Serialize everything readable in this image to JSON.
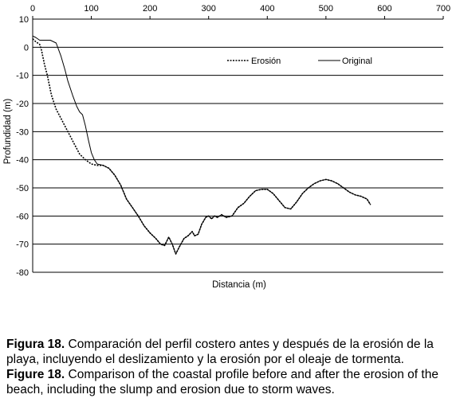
{
  "chart_data": {
    "type": "line",
    "xlabel": "Distancia (m)",
    "ylabel": "Profundidad (m)",
    "xlim": [
      0,
      700
    ],
    "ylim": [
      -80,
      10
    ],
    "xticks": [
      0,
      100,
      200,
      300,
      400,
      500,
      600,
      700
    ],
    "yticks": [
      10,
      0,
      -10,
      -20,
      -30,
      -40,
      -50,
      -60,
      -70,
      -80
    ],
    "x_axis_position": "top",
    "grid": "horizontal",
    "legend_position": "top-right",
    "series": [
      {
        "name": "Erosión",
        "style": "dotted",
        "points": [
          [
            0,
            3
          ],
          [
            5,
            2
          ],
          [
            12,
            1
          ],
          [
            15,
            -1
          ],
          [
            20,
            -6
          ],
          [
            25,
            -10
          ],
          [
            32,
            -17
          ],
          [
            40,
            -22
          ],
          [
            50,
            -26
          ],
          [
            60,
            -30
          ],
          [
            70,
            -34
          ],
          [
            80,
            -38
          ],
          [
            90,
            -40
          ],
          [
            100,
            -41.5
          ],
          [
            110,
            -42
          ],
          [
            120,
            -42
          ],
          [
            130,
            -43
          ],
          [
            140,
            -45.5
          ],
          [
            150,
            -49
          ],
          [
            160,
            -54
          ],
          [
            170,
            -57
          ],
          [
            180,
            -60
          ],
          [
            190,
            -63.5
          ],
          [
            200,
            -66
          ],
          [
            210,
            -68
          ],
          [
            218,
            -70
          ],
          [
            225,
            -70.5
          ],
          [
            232,
            -67.5
          ],
          [
            238,
            -70
          ],
          [
            244,
            -73.5
          ],
          [
            250,
            -71
          ],
          [
            258,
            -68
          ],
          [
            265,
            -67
          ],
          [
            272,
            -65.5
          ],
          [
            276,
            -67
          ],
          [
            282,
            -66.5
          ],
          [
            288,
            -63
          ],
          [
            295,
            -60.5
          ],
          [
            300,
            -60
          ],
          [
            305,
            -61
          ],
          [
            310,
            -60
          ],
          [
            315,
            -60.5
          ],
          [
            322,
            -59.5
          ],
          [
            330,
            -60.5
          ],
          [
            340,
            -60
          ],
          [
            350,
            -57
          ],
          [
            360,
            -55.5
          ],
          [
            370,
            -53
          ],
          [
            380,
            -51
          ],
          [
            390,
            -50.5
          ],
          [
            400,
            -50.5
          ],
          [
            410,
            -52
          ],
          [
            420,
            -54.5
          ],
          [
            430,
            -57
          ],
          [
            440,
            -57.5
          ],
          [
            450,
            -55
          ],
          [
            460,
            -52
          ],
          [
            470,
            -50
          ],
          [
            480,
            -48.5
          ],
          [
            490,
            -47.5
          ],
          [
            500,
            -47
          ],
          [
            510,
            -47.5
          ],
          [
            520,
            -48.5
          ],
          [
            530,
            -50
          ],
          [
            540,
            -51.5
          ],
          [
            550,
            -52.5
          ],
          [
            560,
            -53
          ],
          [
            570,
            -54
          ],
          [
            576,
            -56
          ]
        ]
      },
      {
        "name": "Original",
        "style": "solid",
        "points": [
          [
            0,
            4
          ],
          [
            5,
            3.5
          ],
          [
            12,
            2.5
          ],
          [
            20,
            2.5
          ],
          [
            30,
            2.5
          ],
          [
            40,
            1.5
          ],
          [
            48,
            -3
          ],
          [
            55,
            -8
          ],
          [
            60,
            -12
          ],
          [
            68,
            -17
          ],
          [
            75,
            -21
          ],
          [
            80,
            -23
          ],
          [
            85,
            -24
          ],
          [
            90,
            -28
          ],
          [
            95,
            -33
          ],
          [
            100,
            -37.5
          ],
          [
            105,
            -40
          ],
          [
            110,
            -41.5
          ],
          [
            120,
            -42
          ],
          [
            130,
            -43
          ],
          [
            140,
            -45.5
          ],
          [
            150,
            -49
          ],
          [
            160,
            -54
          ],
          [
            170,
            -57
          ],
          [
            180,
            -60
          ],
          [
            190,
            -63.5
          ],
          [
            200,
            -66
          ],
          [
            210,
            -68
          ],
          [
            218,
            -70
          ],
          [
            225,
            -70.5
          ],
          [
            232,
            -67.5
          ],
          [
            238,
            -70
          ],
          [
            244,
            -73.5
          ],
          [
            250,
            -71
          ],
          [
            258,
            -68
          ],
          [
            265,
            -67
          ],
          [
            272,
            -65.5
          ],
          [
            276,
            -67
          ],
          [
            282,
            -66.5
          ],
          [
            288,
            -63
          ],
          [
            295,
            -60.5
          ],
          [
            300,
            -60
          ],
          [
            305,
            -61
          ],
          [
            310,
            -60
          ],
          [
            315,
            -60.5
          ],
          [
            322,
            -59.5
          ],
          [
            330,
            -60.5
          ],
          [
            340,
            -60
          ],
          [
            350,
            -57
          ],
          [
            360,
            -55.5
          ],
          [
            370,
            -53
          ],
          [
            380,
            -51
          ],
          [
            390,
            -50.5
          ],
          [
            400,
            -50.5
          ],
          [
            410,
            -52
          ],
          [
            420,
            -54.5
          ],
          [
            430,
            -57
          ],
          [
            440,
            -57.5
          ],
          [
            450,
            -55
          ],
          [
            460,
            -52
          ],
          [
            470,
            -50
          ],
          [
            480,
            -48.5
          ],
          [
            490,
            -47.5
          ],
          [
            500,
            -47
          ],
          [
            510,
            -47.5
          ],
          [
            520,
            -48.5
          ],
          [
            530,
            -50
          ],
          [
            540,
            -51.5
          ],
          [
            550,
            -52.5
          ],
          [
            560,
            -53
          ],
          [
            570,
            -54
          ],
          [
            576,
            -56
          ]
        ]
      }
    ]
  },
  "caption": {
    "es_label": "Figura 18.",
    "es_text": " Comparación del perfil costero antes y después de la erosión de la playa, incluyendo el deslizamiento y la erosión por el oleaje de tormenta.",
    "en_label": "Figure 18.",
    "en_text": " Comparison of the coastal profile before and after the erosion of the beach, including the slump and erosion due to storm waves."
  }
}
